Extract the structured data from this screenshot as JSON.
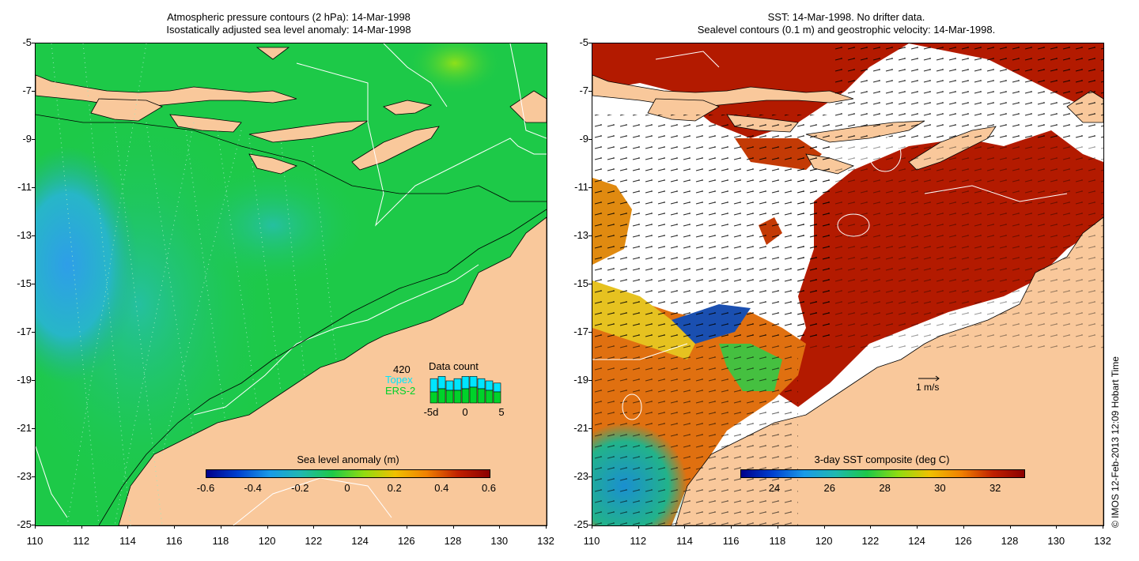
{
  "left_title_line1": "Atmospheric pressure contours (2 hPa): 14-Mar-1998",
  "left_title_line2": "Isostatically adjusted sea level anomaly: 14-Mar-1998",
  "right_title_line1": "SST: 14-Mar-1998. No drifter data.",
  "right_title_line2": "Sealevel contours (0.1 m) and geostrophic velocity: 14-Mar-1998.",
  "y_ticks": [
    "-5",
    "-7",
    "-9",
    "-11",
    "-13",
    "-15",
    "-17",
    "-19",
    "-21",
    "-23",
    "-25"
  ],
  "x_ticks": [
    "110",
    "112",
    "114",
    "116",
    "118",
    "120",
    "122",
    "124",
    "126",
    "128",
    "130",
    "132"
  ],
  "left_colorbar": {
    "title": "Sea level anomaly (m)",
    "labels": [
      "-0.6",
      "-0.4",
      "-0.2",
      "0",
      "0.2",
      "0.4",
      "0.6"
    ]
  },
  "right_colorbar": {
    "title": "3-day SST composite (deg C)",
    "labels": [
      "24",
      "26",
      "28",
      "30",
      "32"
    ]
  },
  "data_count": {
    "total": "420",
    "title": "Data count",
    "series1": "Topex",
    "series2": "ERS-2",
    "axis_labels": [
      "-5d",
      "0",
      "5"
    ],
    "topex_heights": [
      0.55,
      0.6,
      0.5,
      0.55,
      0.6,
      0.6,
      0.55,
      0.5,
      0.45
    ],
    "ers_heights": [
      0.35,
      0.45,
      0.4,
      0.4,
      0.45,
      0.5,
      0.45,
      0.4,
      0.35
    ]
  },
  "scale_label": "1 m/s",
  "copyright": "© IMOS 12-Feb-2013 12:09 Hobart Time",
  "colors": {
    "land": "#f9c89b",
    "sea_green": "#1dc948",
    "sea_teal": "#22b38a",
    "sst_red": "#b31a00",
    "sst_orange": "#d9600a",
    "topex": "#00e5ff",
    "ers": "#00d22a"
  }
}
